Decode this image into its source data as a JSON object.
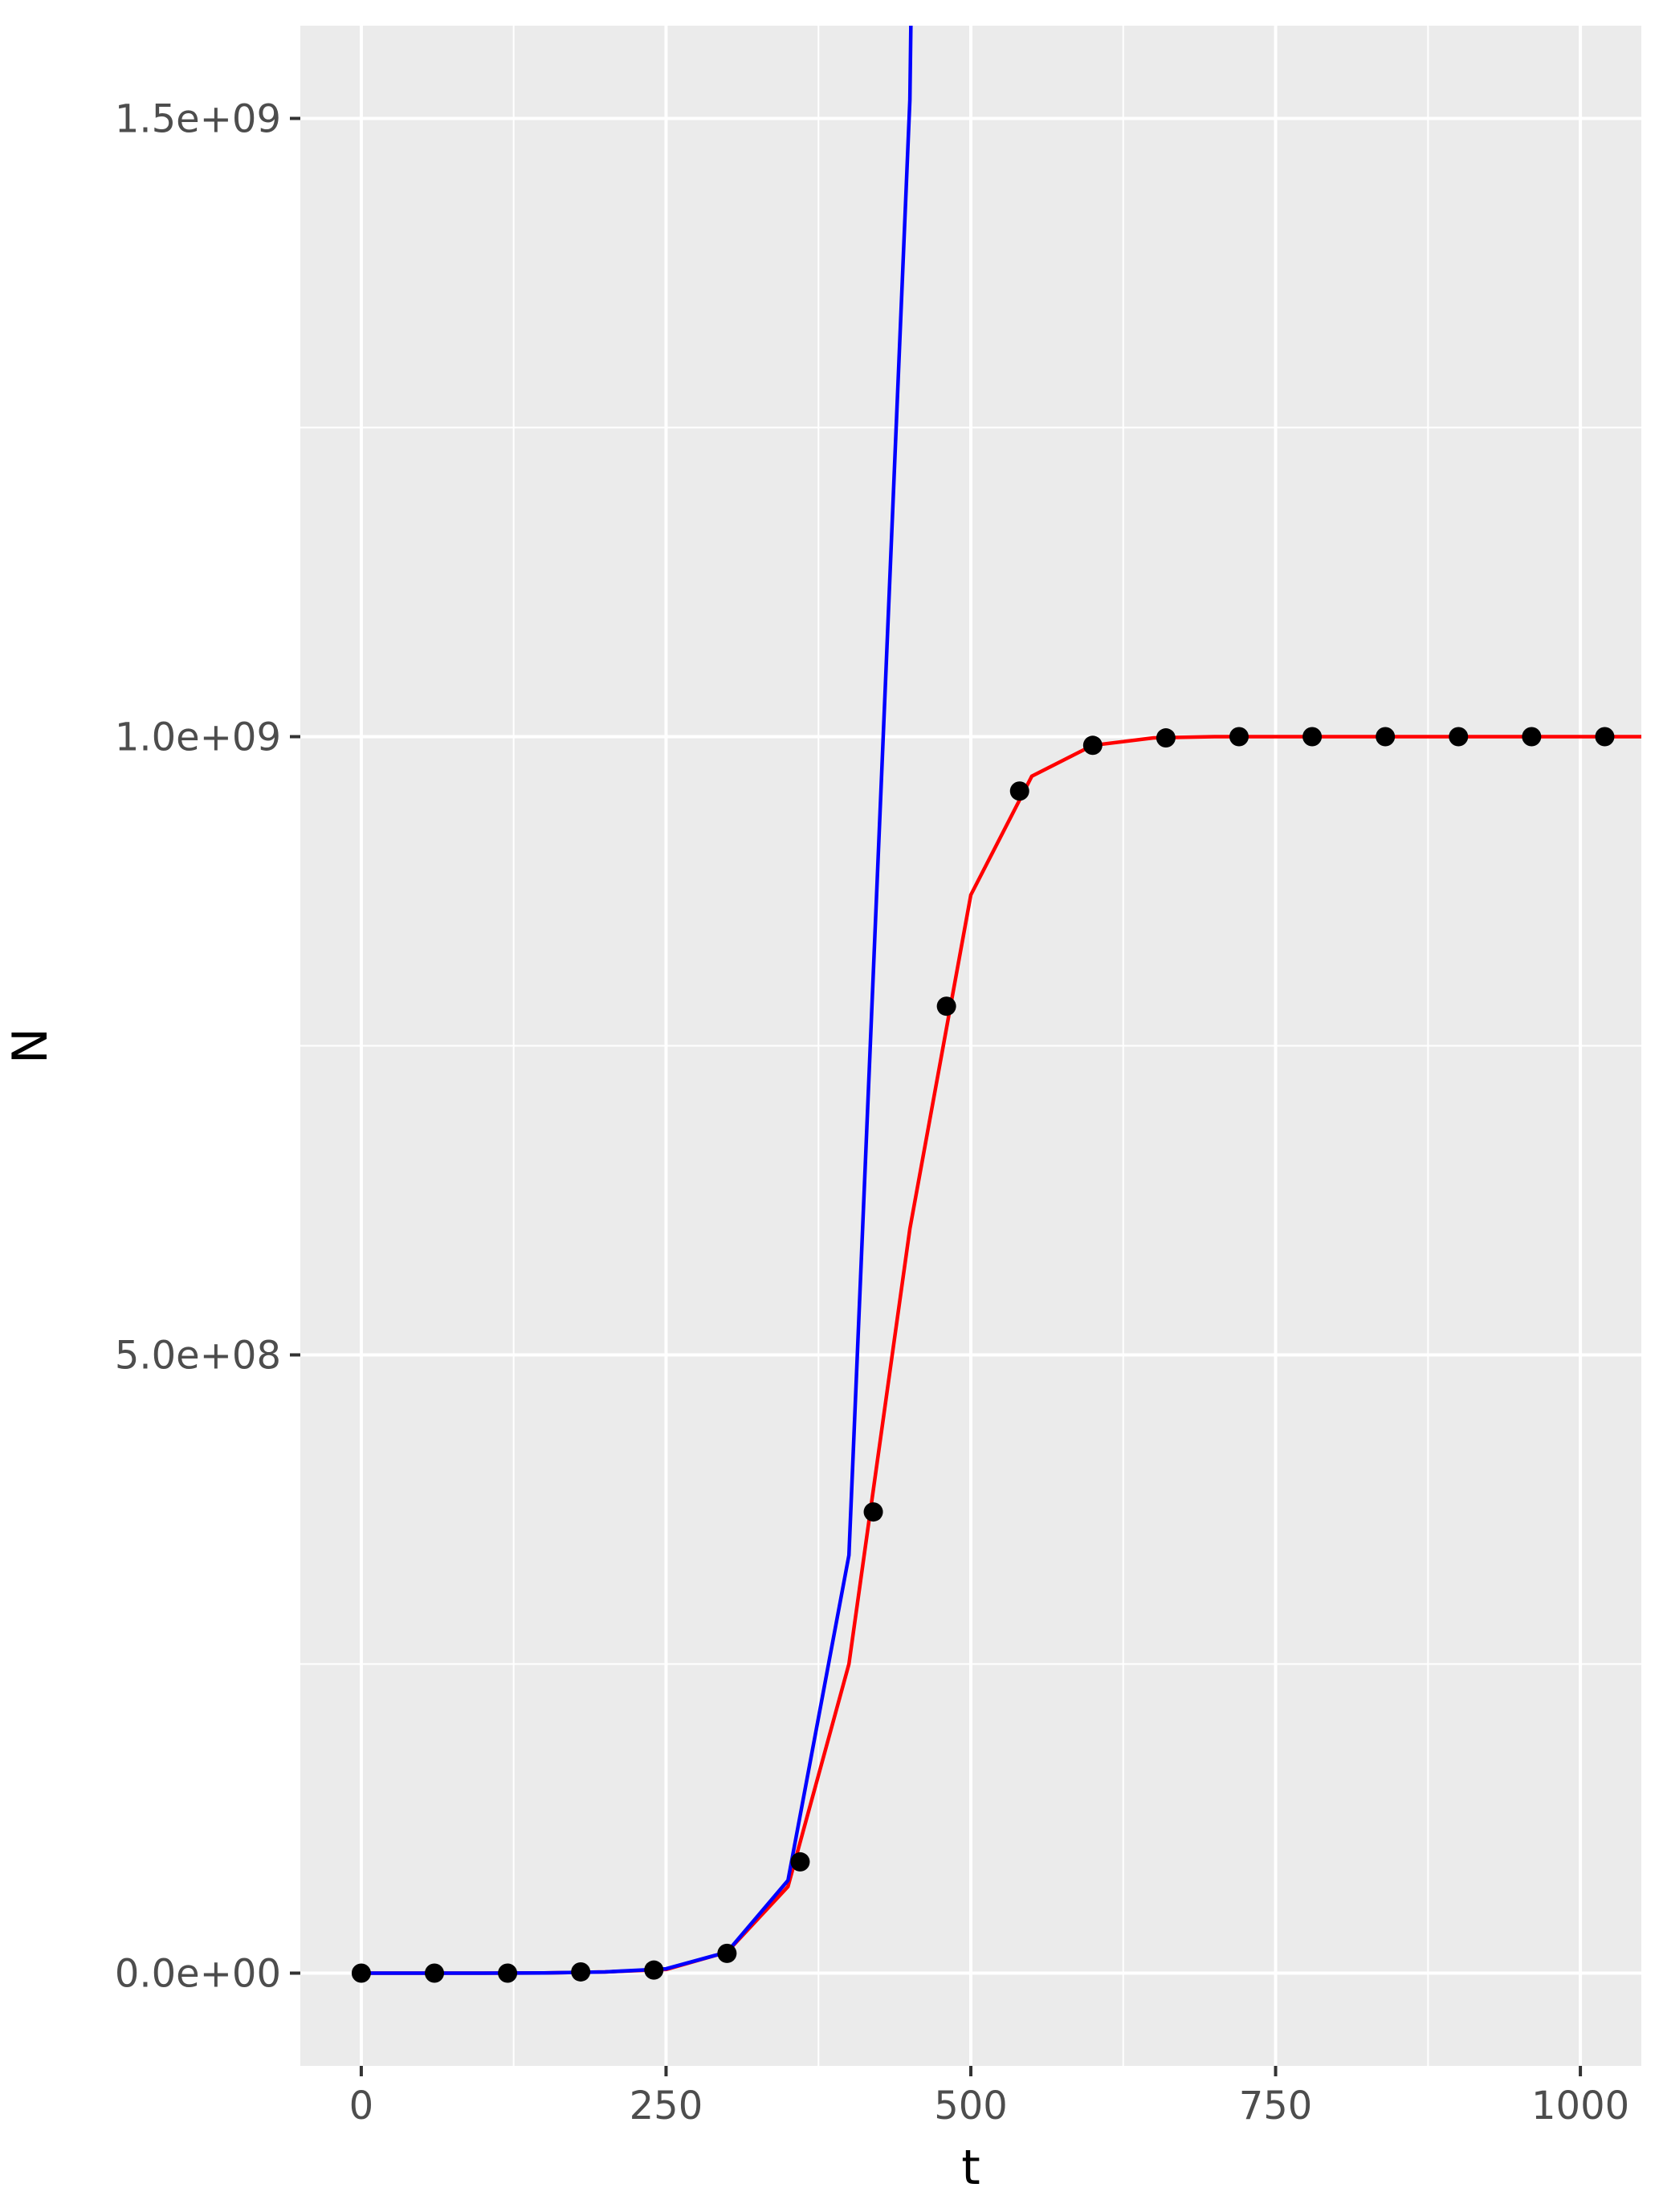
{
  "chart_data": {
    "type": "line",
    "title": "",
    "xlabel": "t",
    "ylabel": "N",
    "xlim": [
      -50,
      1050
    ],
    "ylim": [
      -75000000,
      1575000000
    ],
    "x_ticks": [
      0,
      250,
      500,
      750,
      1000
    ],
    "x_tick_labels": [
      "0",
      "250",
      "500",
      "750",
      "1000"
    ],
    "x_minor_ticks": [
      125,
      375,
      625,
      875
    ],
    "y_ticks": [
      0,
      500000000,
      1000000000,
      1500000000
    ],
    "y_tick_labels": [
      "0.0e+00",
      "5.0e+08",
      "1.0e+09",
      "1.5e+09"
    ],
    "y_minor_ticks": [
      250000000,
      750000000,
      1250000000
    ],
    "grid": true,
    "background": "#ebebeb",
    "gridline_color": "#ffffff",
    "points": {
      "color": "#000000",
      "x": [
        0,
        60,
        120,
        180,
        240,
        300,
        360,
        420,
        480,
        540,
        600,
        660,
        720,
        780,
        840,
        900,
        960,
        1020
      ],
      "y": [
        0,
        0,
        0,
        1000000,
        2500000,
        16000000,
        90000000,
        373000000,
        782000000,
        956000000,
        993000000,
        999000000,
        1000000000,
        1000000000,
        1000000000,
        1000000000,
        1000000000,
        1000000000
      ]
    },
    "series": [
      {
        "color": "#ff0000",
        "x": [
          0,
          50,
          100,
          150,
          200,
          250,
          300,
          350,
          400,
          450,
          500,
          550,
          600,
          650,
          700,
          750,
          800,
          850,
          900,
          950,
          1000,
          1050
        ],
        "y": [
          0,
          0,
          0,
          200000,
          1000000,
          3000000,
          17000000,
          70000000,
          250000000,
          602000000,
          872000000,
          968000000,
          993000000,
          999000000,
          1000000000,
          1000000000,
          1000000000,
          1000000000,
          1000000000,
          1000000000,
          1000000000,
          1000000000
        ]
      },
      {
        "color": "#0000ff",
        "x": [
          0,
          50,
          100,
          150,
          200,
          250,
          300,
          350,
          400,
          450,
          470
        ],
        "y": [
          0,
          0,
          0,
          200000,
          1000000,
          3500000,
          17000000,
          75000000,
          338000000,
          1515000000,
          3000000000
        ]
      }
    ]
  }
}
